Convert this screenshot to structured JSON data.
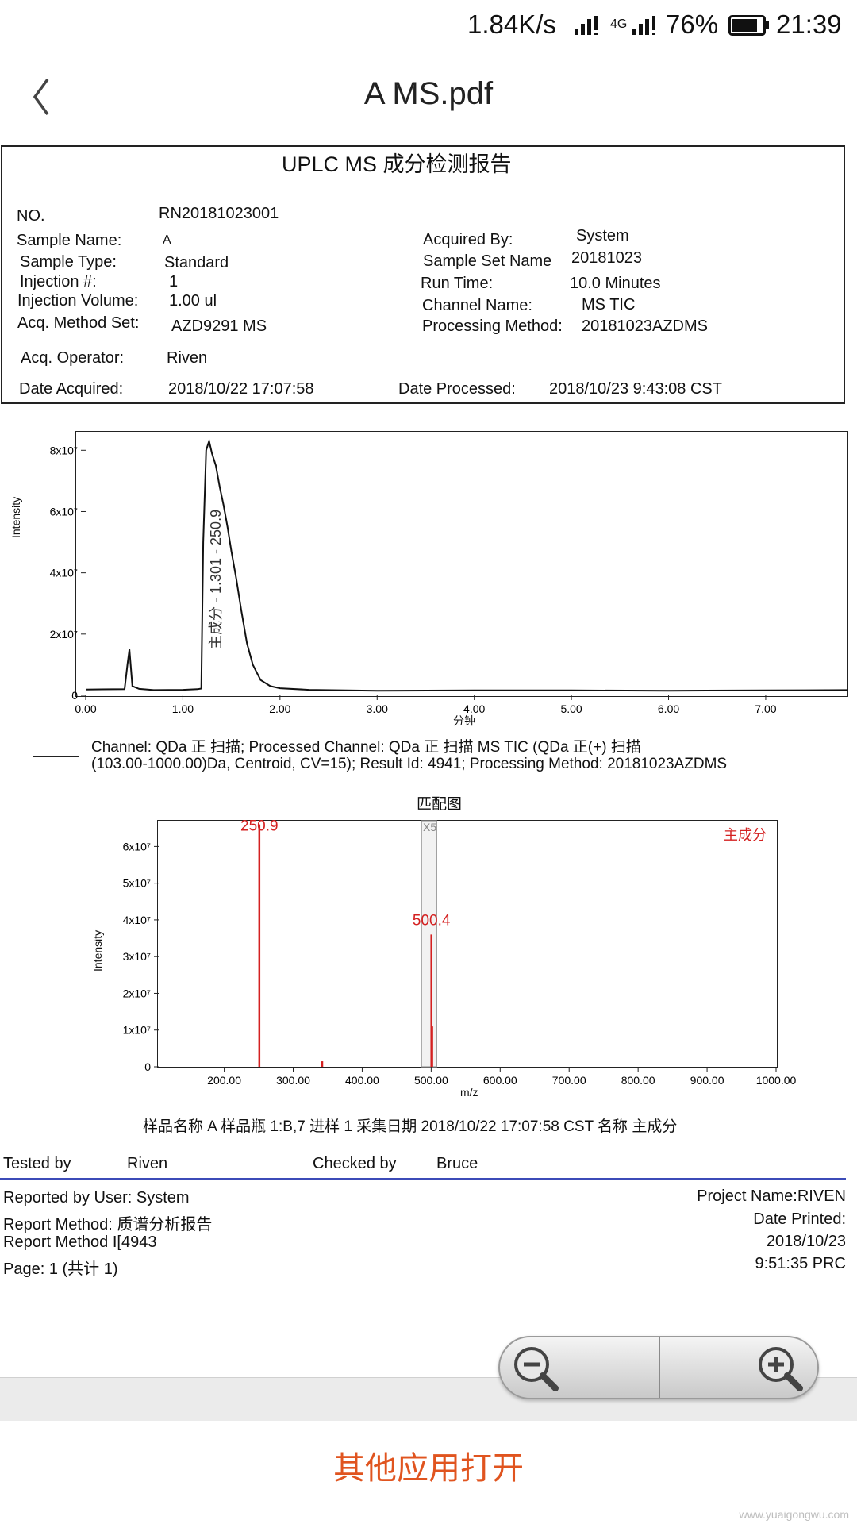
{
  "status_bar": {
    "speed": "1.84K/s",
    "network": "4G",
    "battery": "76%",
    "time": "21:39"
  },
  "nav": {
    "title": "A MS.pdf"
  },
  "report": {
    "title": "UPLC MS  成分检测报告",
    "no_label": "NO.",
    "no_value": "RN20181023001",
    "sample_name_label": "Sample Name:",
    "sample_name_value": "A",
    "sample_type_label": "Sample Type:",
    "sample_type_value": "Standard",
    "injection_label": "Injection #:",
    "injection_value": "1",
    "injection_volume_label": "Injection Volume:",
    "injection_volume_value": "1.00 ul",
    "method_set_label": "Acq. Method Set:",
    "method_set_value": "AZD9291 MS",
    "operator_label": "Acq. Operator:",
    "operator_value": "Riven",
    "date_acquired_label": "Date Acquired:",
    "date_acquired_value": "2018/10/22 17:07:58",
    "acquired_by_label": "Acquired By:",
    "acquired_by_value": "System",
    "sample_set_label": "Sample Set Name",
    "sample_set_value": "20181023",
    "run_time_label": "Run Time:",
    "run_time_value": "10.0 Minutes",
    "channel_label": "Channel Name:",
    "channel_value": "MS TIC",
    "processing_label": "Processing Method:",
    "processing_value": "20181023AZDMS",
    "date_processed_label": "Date Processed:",
    "date_processed_value": "2018/10/23 9:43:08 CST",
    "channel_desc_1": "Channel: QDa 正 扫描;   Processed Channel:  QDa 正 扫描 MS TIC (QDa 正(+) 扫描",
    "channel_desc_2": "(103.00-1000.00)Da, Centroid, CV=15);   Result Id:  4941;   Processing Method:  20181023AZDMS",
    "sample_line": "样品名称 A 样品瓶 1:B,7 进样 1 采集日期 2018/10/22 17:07:58 CST 名称 主成分",
    "tested_by_label": "Tested by",
    "tested_by_value": "Riven",
    "checked_by_label": "Checked by",
    "checked_by_value": "Bruce",
    "reported_by": "Reported by User:  System",
    "report_method": "Report Method:  质谱分析报告",
    "report_method_id": "Report Method I[4943",
    "page": "Page: 1 (共计 1)",
    "project_name": "Project Name:RIVEN",
    "date_printed_label": "Date Printed:",
    "date_printed_date": "2018/10/23",
    "date_printed_time": "9:51:35 PRC"
  },
  "chart_data": [
    {
      "type": "line",
      "title": "",
      "xlabel": "分钟",
      "ylabel": "Intensity",
      "xlim": [
        0,
        7.85
      ],
      "ylim": [
        0,
        85000000
      ],
      "xticks": [
        "0.00",
        "1.00",
        "2.00",
        "3.00",
        "4.00",
        "5.00",
        "6.00",
        "7.00"
      ],
      "yticks": [
        "0",
        "2x10⁷",
        "4x10⁷",
        "6x10⁷",
        "8x10⁷"
      ],
      "peak_label": "主成分 - 1.301 - 250.9",
      "x": [
        0,
        0.4,
        0.43,
        0.45,
        0.48,
        0.55,
        0.7,
        1.0,
        1.15,
        1.19,
        1.21,
        1.24,
        1.27,
        1.3,
        1.34,
        1.38,
        1.42,
        1.46,
        1.5,
        1.55,
        1.6,
        1.66,
        1.72,
        1.8,
        1.9,
        2.0,
        2.3,
        3.0,
        4.0,
        5.0,
        6.0,
        7.0,
        7.85
      ],
      "y": [
        1900000,
        2000000,
        10000000,
        15000000,
        3000000,
        2100000,
        1700000,
        1800000,
        2000000,
        2200000,
        50000000,
        80000000,
        83000000,
        79000000,
        75000000,
        68000000,
        62000000,
        55000000,
        47000000,
        38000000,
        28000000,
        17000000,
        10000000,
        5000000,
        3000000,
        2300000,
        1800000,
        1500000,
        1600000,
        1600000,
        1500000,
        1600000,
        1700000
      ]
    },
    {
      "type": "bar",
      "title": "匹配图",
      "xlabel": "m/z",
      "ylabel": "Intensity",
      "xlim": [
        105,
        1000
      ],
      "ylim": [
        0,
        67000000
      ],
      "xticks": [
        "200.00",
        "300.00",
        "400.00",
        "500.00",
        "600.00",
        "700.00",
        "800.00",
        "900.00",
        "1000.00"
      ],
      "yticks": [
        "0",
        "1x10⁷",
        "2x10⁷",
        "3x10⁷",
        "4x10⁷",
        "5x10⁷",
        "6x10⁷"
      ],
      "marker_label": "X5",
      "series_label": "主成分",
      "peaks": [
        {
          "mz": 250.9,
          "intensity": 66000000,
          "label": "250.9"
        },
        {
          "mz": 342.0,
          "intensity": 1500000,
          "label": ""
        },
        {
          "mz": 500.4,
          "intensity": 36000000,
          "label": "500.4"
        },
        {
          "mz": 501.4,
          "intensity": 11000000,
          "label": ""
        }
      ]
    }
  ],
  "footer": {
    "open_with": "其他应用打开",
    "watermark": "www.yuaigongwu.com"
  },
  "colors": {
    "peak": "#d42020",
    "accent": "#e0541f",
    "rule": "#3c4bb8"
  }
}
